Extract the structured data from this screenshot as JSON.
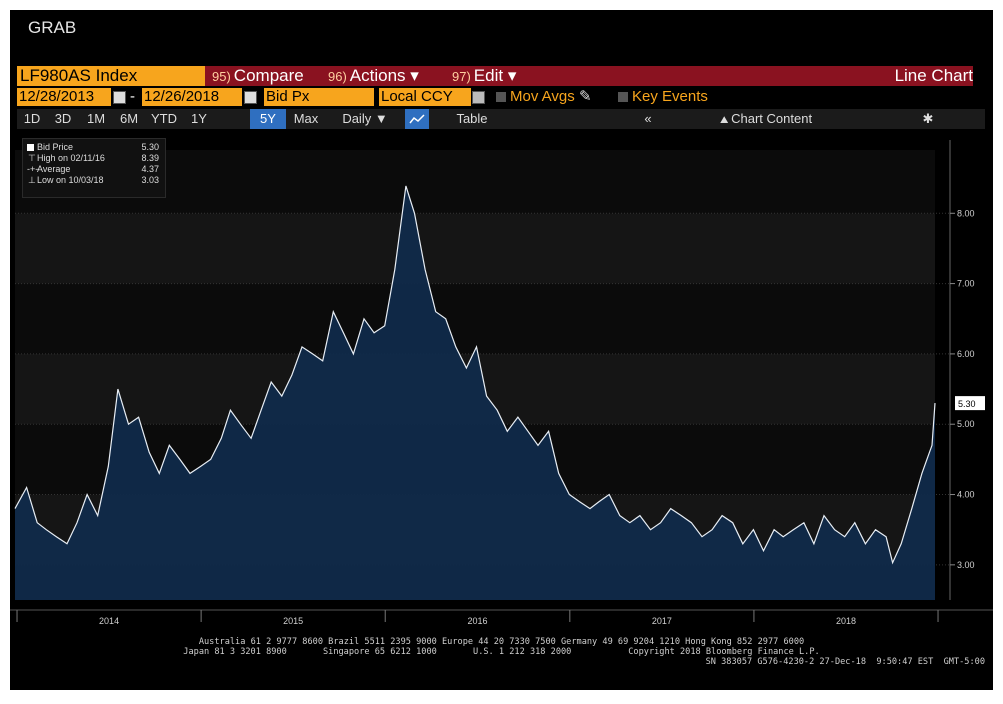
{
  "header": {
    "title": "GRAB"
  },
  "toolbar1": {
    "ticker": "LF980AS Index",
    "compare_num": "95)",
    "compare_label": "Compare",
    "actions_num": "96)",
    "actions_label": "Actions ▾",
    "edit_num": "97)",
    "edit_label": "Edit ▾",
    "chart_type": "Line Chart"
  },
  "toolbar2": {
    "start_date": "12/28/2013",
    "sep": "-",
    "end_date": "12/26/2018",
    "field": "Bid Px",
    "currency": "Local CCY",
    "mov_avgs": "Mov Avgs",
    "key_events": "Key Events"
  },
  "toolbar3": {
    "ranges": [
      "1D",
      "3D",
      "1M",
      "6M",
      "YTD",
      "1Y",
      "5Y",
      "Max"
    ],
    "selected_range": "5Y",
    "frequency": "Daily ▼",
    "table_label": "Table",
    "collapse": "«",
    "chart_content": "Chart Content",
    "gear": "✱"
  },
  "legend": {
    "series": "Bid Price",
    "last": "5.30",
    "high_label": "High on 02/11/16",
    "high": "8.39",
    "avg_label": "Average",
    "avg": "4.37",
    "low_label": "Low on 10/03/18",
    "low": "3.03"
  },
  "footer": {
    "line1": "Australia 61 2 9777 8600 Brazil 5511 2395 9000 Europe 44 20 7330 7500 Germany 49 69 9204 1210 Hong Kong 852 2977 6000",
    "line2": "Japan 81 3 3201 8900       Singapore 65 6212 1000       U.S. 1 212 318 2000           Copyright 2018 Bloomberg Finance L.P.",
    "line3": "SN 383057 G576-4230-2 27-Dec-18  9:50:47 EST  GMT-5:00"
  },
  "colors": {
    "orange": "#f7a51d",
    "maroon": "#8a1220",
    "area": "#102a4a",
    "line": "#e8eef5",
    "selected": "#2f6fc0"
  },
  "chart_data": {
    "type": "area",
    "title": "",
    "xlabel": "",
    "ylabel": "",
    "x_range": [
      "2013-12-28",
      "2018-12-26"
    ],
    "ylim": [
      2.5,
      8.9
    ],
    "yticks": [
      3.0,
      4.0,
      5.0,
      6.0,
      7.0,
      8.0
    ],
    "ytick_labels": [
      "3.00",
      "4.00",
      "5.00",
      "6.00",
      "7.00",
      "8.00"
    ],
    "xtick_labels": [
      "2014",
      "2015",
      "2016",
      "2017",
      "2018"
    ],
    "last_value_label": "5.30",
    "series": [
      {
        "name": "Bid Price",
        "x": [
          "2013-12-28",
          "2014-01-20",
          "2014-02-10",
          "2014-02-28",
          "2014-03-20",
          "2014-04-10",
          "2014-04-30",
          "2014-05-20",
          "2014-06-10",
          "2014-07-01",
          "2014-07-20",
          "2014-08-10",
          "2014-08-30",
          "2014-09-20",
          "2014-10-10",
          "2014-10-30",
          "2014-11-20",
          "2014-12-10",
          "2014-12-31",
          "2015-01-20",
          "2015-02-10",
          "2015-02-28",
          "2015-03-20",
          "2015-04-10",
          "2015-04-30",
          "2015-05-20",
          "2015-06-10",
          "2015-06-30",
          "2015-07-20",
          "2015-08-10",
          "2015-08-30",
          "2015-09-20",
          "2015-10-10",
          "2015-10-30",
          "2015-11-20",
          "2015-12-10",
          "2015-12-31",
          "2016-01-20",
          "2016-02-11",
          "2016-02-28",
          "2016-03-20",
          "2016-04-10",
          "2016-04-30",
          "2016-05-20",
          "2016-06-10",
          "2016-06-30",
          "2016-07-20",
          "2016-08-10",
          "2016-08-30",
          "2016-09-20",
          "2016-10-10",
          "2016-10-30",
          "2016-11-20",
          "2016-12-10",
          "2016-12-31",
          "2017-01-20",
          "2017-02-10",
          "2017-02-28",
          "2017-03-20",
          "2017-04-10",
          "2017-04-30",
          "2017-05-20",
          "2017-06-10",
          "2017-06-30",
          "2017-07-20",
          "2017-08-10",
          "2017-08-30",
          "2017-09-20",
          "2017-10-10",
          "2017-10-30",
          "2017-11-20",
          "2017-12-10",
          "2017-12-31",
          "2018-01-20",
          "2018-02-10",
          "2018-02-28",
          "2018-03-20",
          "2018-04-10",
          "2018-04-30",
          "2018-05-20",
          "2018-06-10",
          "2018-06-30",
          "2018-07-20",
          "2018-08-10",
          "2018-08-30",
          "2018-09-20",
          "2018-10-03",
          "2018-10-20",
          "2018-11-10",
          "2018-11-30",
          "2018-12-10",
          "2018-12-20",
          "2018-12-26"
        ],
        "values": [
          3.8,
          4.1,
          3.6,
          3.5,
          3.4,
          3.3,
          3.6,
          4.0,
          3.7,
          4.4,
          5.5,
          5.0,
          5.1,
          4.6,
          4.3,
          4.7,
          4.5,
          4.3,
          4.4,
          4.5,
          4.8,
          5.2,
          5.0,
          4.8,
          5.2,
          5.6,
          5.4,
          5.7,
          6.1,
          6.0,
          5.9,
          6.6,
          6.3,
          6.0,
          6.5,
          6.3,
          6.4,
          7.2,
          8.39,
          8.0,
          7.2,
          6.6,
          6.5,
          6.1,
          5.8,
          6.1,
          5.4,
          5.2,
          4.9,
          5.1,
          4.9,
          4.7,
          4.9,
          4.3,
          4.0,
          3.9,
          3.8,
          3.9,
          4.0,
          3.7,
          3.6,
          3.7,
          3.5,
          3.6,
          3.8,
          3.7,
          3.6,
          3.4,
          3.5,
          3.7,
          3.6,
          3.3,
          3.5,
          3.2,
          3.5,
          3.4,
          3.5,
          3.6,
          3.3,
          3.7,
          3.5,
          3.4,
          3.6,
          3.3,
          3.5,
          3.4,
          3.03,
          3.3,
          3.8,
          4.3,
          4.5,
          4.7,
          5.3
        ]
      }
    ]
  }
}
